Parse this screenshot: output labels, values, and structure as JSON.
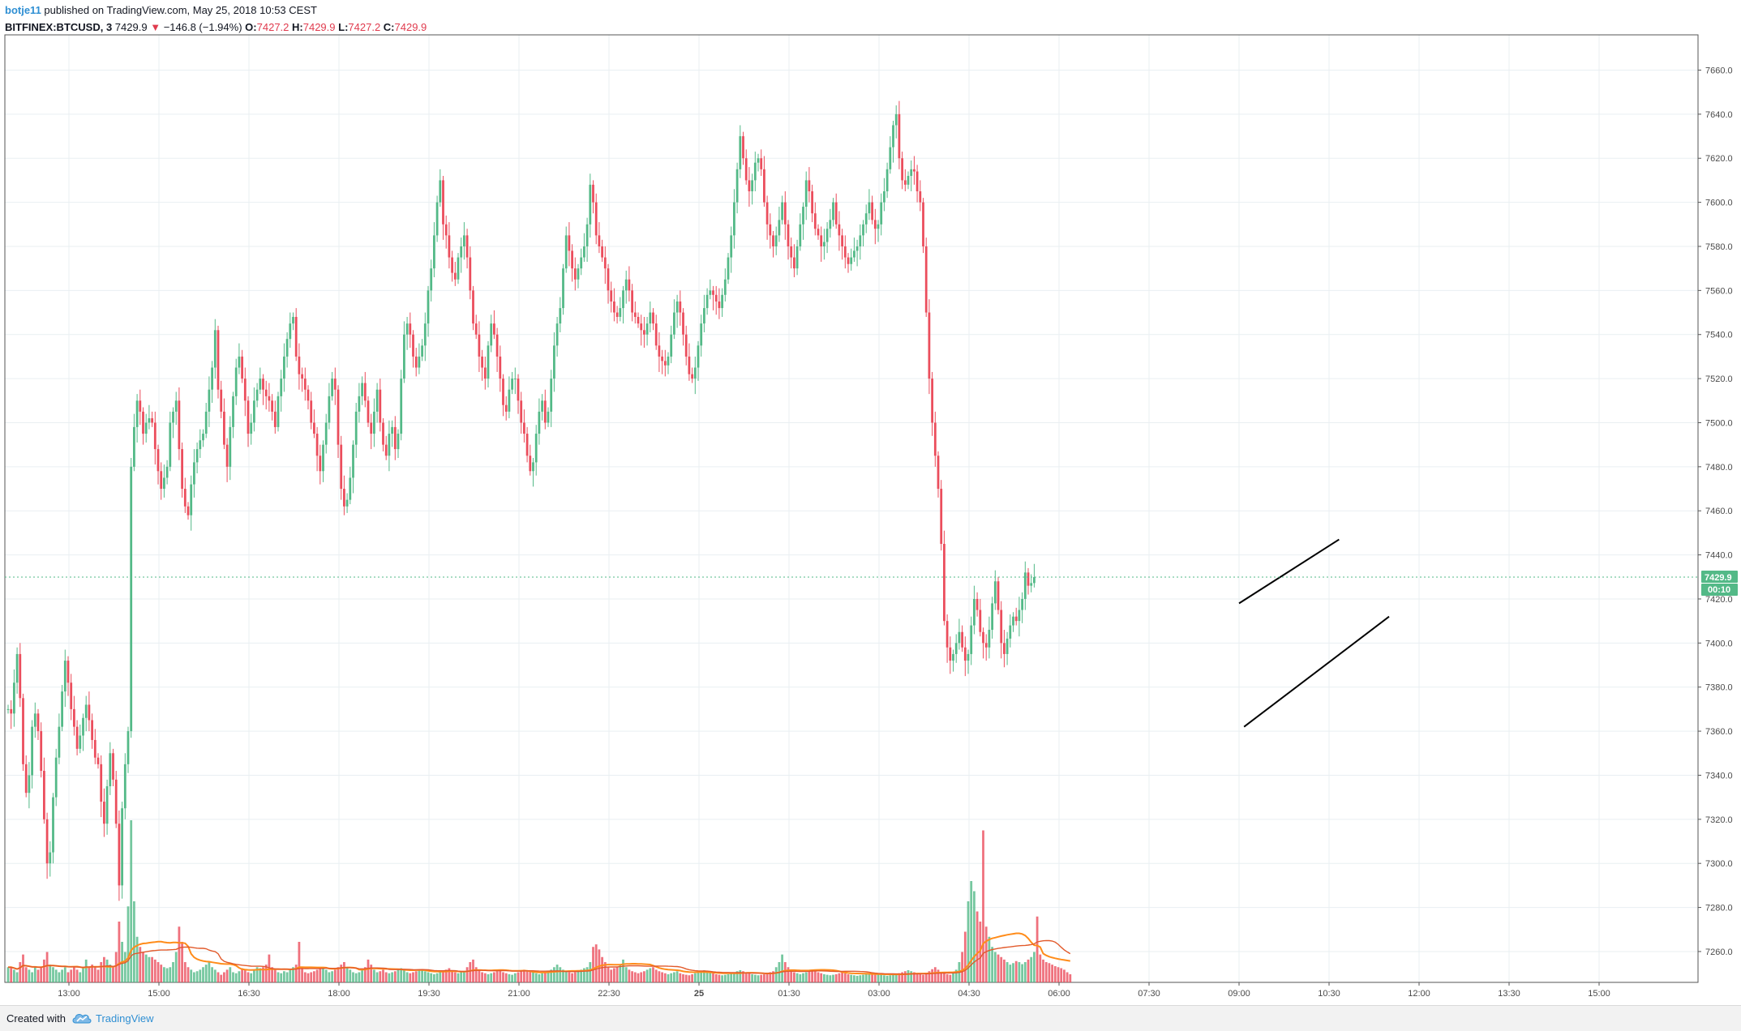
{
  "header": {
    "author": "botje11",
    "published": "published on TradingView.com, May 25, 2018 10:53 CEST",
    "symbol": "BITFINEX:BTCUSD, 3",
    "last": "7429.9",
    "direction_glyph": "▼",
    "change": "−146.8 (−1.94%)",
    "o_label": "O:",
    "o_value": "7427.2",
    "h_label": "H:",
    "h_value": "7429.9",
    "l_label": "L:",
    "l_value": "7427.2",
    "c_label": "C:",
    "c_value": "7429.9"
  },
  "footer": {
    "created_with": "Created with",
    "brand": "TradingView",
    "logo_icon": "tradingview-cloud-icon"
  },
  "colors": {
    "up": "#53b987",
    "down": "#eb4d5c",
    "volume_ma": "#ff8c1a",
    "volume_ma2": "#e25a2b",
    "price_line": "#53b987",
    "trendline": "#000000",
    "grid": "#e9eff2"
  },
  "chart_data": {
    "type": "candlestick",
    "interval_minutes": 3,
    "x_tick_labels": [
      "13:00",
      "15:00",
      "16:30",
      "18:00",
      "19:30",
      "21:00",
      "22:30",
      "25",
      "01:30",
      "03:00",
      "04:30",
      "06:00",
      "07:30",
      "09:00",
      "10:30",
      "12:00",
      "13:30",
      "15:00"
    ],
    "y_tick_labels": [
      "7660.0",
      "7640.0",
      "7620.0",
      "7600.0",
      "7580.0",
      "7560.0",
      "7540.0",
      "7520.0",
      "7500.0",
      "7480.0",
      "7460.0",
      "7440.0",
      "7420.0",
      "7400.0",
      "7380.0",
      "7360.0",
      "7340.0",
      "7320.0",
      "7300.0",
      "7280.0",
      "7260.0"
    ],
    "ylim": [
      7246,
      7676
    ],
    "last_price_label": "7429.9",
    "countdown_label": "00:10",
    "last_price": 7429.9,
    "closes": [
      7370,
      7368,
      7382,
      7395,
      7375,
      7345,
      7332,
      7340,
      7362,
      7368,
      7360,
      7342,
      7320,
      7300,
      7305,
      7330,
      7348,
      7362,
      7378,
      7392,
      7382,
      7370,
      7362,
      7352,
      7358,
      7366,
      7372,
      7365,
      7356,
      7348,
      7345,
      7328,
      7318,
      7335,
      7350,
      7338,
      7318,
      7290,
      7325,
      7345,
      7360,
      7480,
      7498,
      7510,
      7505,
      7495,
      7500,
      7502,
      7500,
      7488,
      7478,
      7470,
      7475,
      7480,
      7500,
      7505,
      7510,
      7488,
      7470,
      7462,
      7458,
      7472,
      7482,
      7488,
      7492,
      7495,
      7505,
      7515,
      7525,
      7542,
      7515,
      7505,
      7490,
      7480,
      7498,
      7512,
      7525,
      7530,
      7520,
      7510,
      7495,
      7500,
      7510,
      7515,
      7520,
      7515,
      7512,
      7510,
      7505,
      7498,
      7512,
      7520,
      7530,
      7538,
      7545,
      7548,
      7530,
      7522,
      7520,
      7515,
      7510,
      7500,
      7495,
      7485,
      7478,
      7490,
      7500,
      7512,
      7520,
      7515,
      7490,
      7470,
      7462,
      7465,
      7475,
      7490,
      7505,
      7512,
      7518,
      7510,
      7500,
      7495,
      7505,
      7515,
      7500,
      7490,
      7485,
      7495,
      7498,
      7488,
      7495,
      7520,
      7540,
      7545,
      7540,
      7530,
      7525,
      7530,
      7535,
      7545,
      7560,
      7570,
      7585,
      7600,
      7610,
      7590,
      7585,
      7575,
      7568,
      7565,
      7575,
      7580,
      7585,
      7575,
      7560,
      7545,
      7540,
      7530,
      7525,
      7520,
      7535,
      7545,
      7540,
      7530,
      7520,
      7508,
      7505,
      7515,
      7520,
      7520,
      7510,
      7500,
      7495,
      7485,
      7478,
      7482,
      7495,
      7505,
      7510,
      7500,
      7505,
      7520,
      7535,
      7545,
      7552,
      7570,
      7585,
      7578,
      7570,
      7565,
      7570,
      7575,
      7580,
      7590,
      7608,
      7600,
      7585,
      7580,
      7575,
      7570,
      7560,
      7555,
      7550,
      7548,
      7552,
      7560,
      7565,
      7560,
      7550,
      7548,
      7545,
      7542,
      7540,
      7545,
      7550,
      7545,
      7535,
      7530,
      7528,
      7526,
      7530,
      7540,
      7550,
      7555,
      7550,
      7540,
      7530,
      7522,
      7520,
      7525,
      7535,
      7545,
      7552,
      7558,
      7560,
      7558,
      7555,
      7552,
      7558,
      7565,
      7575,
      7585,
      7600,
      7615,
      7630,
      7620,
      7610,
      7605,
      7610,
      7618,
      7620,
      7615,
      7600,
      7590,
      7585,
      7580,
      7585,
      7592,
      7600,
      7590,
      7580,
      7575,
      7570,
      7580,
      7590,
      7598,
      7610,
      7605,
      7595,
      7588,
      7585,
      7580,
      7582,
      7588,
      7592,
      7600,
      7590,
      7585,
      7580,
      7575,
      7572,
      7575,
      7578,
      7580,
      7585,
      7590,
      7595,
      7600,
      7592,
      7588,
      7590,
      7600,
      7605,
      7615,
      7625,
      7635,
      7640,
      7620,
      7610,
      7608,
      7612,
      7615,
      7614,
      7605,
      7600,
      7580,
      7550,
      7520,
      7500,
      7485,
      7470,
      7445,
      7410,
      7398,
      7392,
      7395,
      7400,
      7405,
      7398,
      7392,
      7395,
      7408,
      7420,
      7415,
      7405,
      7400,
      7398,
      7406,
      7418,
      7428,
      7415,
      7400,
      7395,
      7402,
      7408,
      7412,
      7410,
      7415,
      7420,
      7432,
      7426,
      7427.2,
      7429.9
    ],
    "volume": [
      30,
      30,
      25,
      20,
      40,
      55,
      30,
      25,
      20,
      30,
      25,
      30,
      45,
      60,
      35,
      30,
      25,
      20,
      25,
      30,
      20,
      25,
      30,
      25,
      20,
      30,
      45,
      30,
      35,
      30,
      25,
      40,
      50,
      45,
      35,
      30,
      60,
      120,
      80,
      60,
      150,
      320,
      160,
      90,
      70,
      60,
      55,
      50,
      50,
      45,
      40,
      35,
      30,
      28,
      30,
      40,
      60,
      110,
      80,
      40,
      30,
      25,
      20,
      22,
      25,
      30,
      35,
      40,
      30,
      25,
      20,
      15,
      20,
      25,
      30,
      20,
      18,
      22,
      28,
      24,
      20,
      18,
      25,
      30,
      28,
      30,
      35,
      55,
      30,
      25,
      20,
      18,
      22,
      20,
      25,
      30,
      35,
      80,
      30,
      20,
      18,
      20,
      22,
      25,
      28,
      30,
      25,
      20,
      22,
      25,
      30,
      35,
      40,
      30,
      25,
      20,
      18,
      20,
      25,
      30,
      45,
      35,
      25,
      20,
      22,
      25,
      20,
      18,
      20,
      22,
      25,
      28,
      24,
      20,
      18,
      20,
      22,
      24,
      26,
      22,
      20,
      18,
      16,
      18,
      20,
      22,
      25,
      28,
      24,
      20,
      18,
      20,
      22,
      30,
      40,
      45,
      30,
      25,
      20,
      18,
      16,
      18,
      20,
      22,
      25,
      20,
      18,
      16,
      15,
      18,
      20,
      22,
      25,
      24,
      22,
      20,
      18,
      16,
      18,
      20,
      22,
      25,
      30,
      35,
      30,
      25,
      22,
      20,
      18,
      20,
      22,
      25,
      28,
      30,
      40,
      70,
      75,
      65,
      50,
      40,
      30,
      25,
      28,
      30,
      35,
      45,
      30,
      25,
      22,
      20,
      18,
      20,
      22,
      25,
      28,
      30,
      25,
      22,
      20,
      18,
      16,
      18,
      20,
      22,
      18,
      16,
      15,
      14,
      16,
      18,
      20,
      22,
      24,
      22,
      20,
      18,
      16,
      15,
      14,
      15,
      16,
      18,
      20,
      22,
      24,
      22,
      20,
      18,
      16,
      15,
      14,
      15,
      16,
      18,
      20,
      22,
      30,
      40,
      55,
      40,
      30,
      25,
      20,
      18,
      16,
      18,
      20,
      22,
      25,
      22,
      20,
      18,
      16,
      15,
      14,
      15,
      16,
      18,
      20,
      18,
      16,
      15,
      14,
      13,
      14,
      15,
      16,
      18,
      20,
      18,
      16,
      15,
      14,
      13,
      14,
      15,
      16,
      18,
      20,
      22,
      24,
      22,
      20,
      18,
      16,
      15,
      18,
      22,
      26,
      30,
      25,
      20,
      18,
      16,
      15,
      18,
      25,
      40,
      60,
      100,
      160,
      200,
      180,
      140,
      120,
      300,
      110,
      90,
      70,
      60,
      55,
      50,
      45,
      40,
      35,
      38,
      42,
      40,
      36,
      40,
      45,
      50,
      60,
      130,
      55,
      45,
      40,
      38,
      35,
      32,
      30,
      28,
      25,
      20,
      16
    ]
  },
  "annotations": {
    "trendlines": [
      {
        "from": [
          7418,
          "09:00"
        ],
        "to": [
          7447,
          "10:40"
        ]
      },
      {
        "from": [
          7362,
          "09:05"
        ],
        "to": [
          7412,
          "11:30"
        ]
      }
    ]
  }
}
